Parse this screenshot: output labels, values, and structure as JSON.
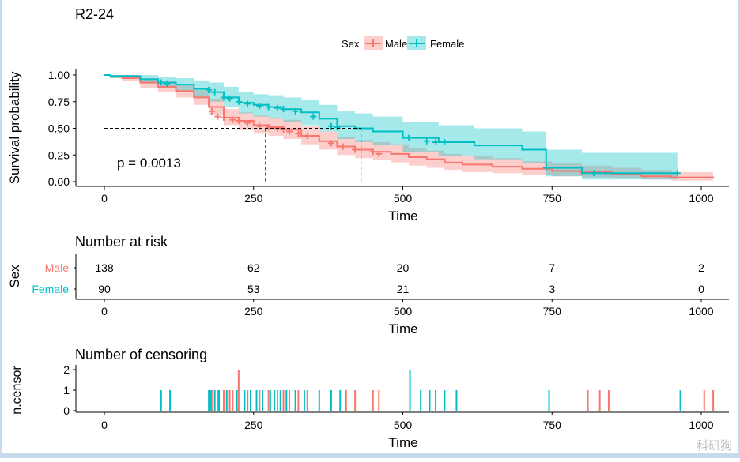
{
  "chart_data": [
    {
      "type": "line",
      "subtype": "kaplan-meier",
      "title": "R2-24",
      "xlabel": "Time",
      "ylabel": "Survival probability",
      "xlim": [
        -50,
        1040
      ],
      "ylim": [
        -0.03,
        1.03
      ],
      "xticks": [
        0,
        250,
        500,
        750,
        1000
      ],
      "yticks": [
        0.0,
        0.25,
        0.5,
        0.75,
        1.0
      ],
      "ytick_labels": [
        "0.00",
        "0.25",
        "0.50",
        "0.75",
        "1.00"
      ],
      "legend": {
        "title": "Sex",
        "position": "top",
        "entries": [
          "Male",
          "Female"
        ]
      },
      "annotation": "p = 0.0013",
      "median_lines": [
        {
          "series": "Male",
          "x": 270,
          "y": 0.5
        },
        {
          "series": "Female",
          "x": 430,
          "y": 0.5
        }
      ],
      "series": [
        {
          "name": "Male",
          "color": "#F8766D",
          "x": [
            0,
            10,
            30,
            60,
            90,
            120,
            150,
            175,
            200,
            225,
            250,
            275,
            300,
            330,
            360,
            390,
            420,
            450,
            480,
            510,
            540,
            570,
            600,
            650,
            700,
            750,
            800,
            850,
            900,
            950,
            1020
          ],
          "y": [
            1.0,
            0.99,
            0.97,
            0.93,
            0.89,
            0.85,
            0.79,
            0.7,
            0.6,
            0.57,
            0.53,
            0.51,
            0.49,
            0.43,
            0.38,
            0.33,
            0.3,
            0.28,
            0.26,
            0.23,
            0.21,
            0.18,
            0.16,
            0.14,
            0.12,
            0.1,
            0.09,
            0.07,
            0.05,
            0.04,
            0.03
          ],
          "lower": [
            1.0,
            0.97,
            0.94,
            0.88,
            0.84,
            0.79,
            0.72,
            0.63,
            0.53,
            0.49,
            0.45,
            0.43,
            0.4,
            0.35,
            0.3,
            0.25,
            0.22,
            0.2,
            0.18,
            0.15,
            0.13,
            0.11,
            0.09,
            0.08,
            0.06,
            0.05,
            0.04,
            0.03,
            0.02,
            0.01,
            0.01
          ],
          "upper": [
            1.0,
            1.0,
            1.0,
            0.97,
            0.94,
            0.91,
            0.86,
            0.78,
            0.68,
            0.65,
            0.62,
            0.6,
            0.58,
            0.52,
            0.47,
            0.42,
            0.39,
            0.37,
            0.35,
            0.31,
            0.29,
            0.26,
            0.24,
            0.22,
            0.19,
            0.17,
            0.15,
            0.13,
            0.11,
            0.09,
            0.08
          ],
          "censor_x": [
            180,
            190,
            200,
            215,
            225,
            240,
            260,
            275,
            290,
            300,
            310,
            325,
            340,
            380,
            400,
            420,
            450,
            460,
            800,
            840
          ],
          "censor_y": [
            0.66,
            0.61,
            0.6,
            0.58,
            0.57,
            0.55,
            0.52,
            0.51,
            0.5,
            0.49,
            0.47,
            0.45,
            0.43,
            0.36,
            0.33,
            0.3,
            0.28,
            0.26,
            0.09,
            0.08
          ]
        },
        {
          "name": "Female",
          "color": "#00BFC4",
          "x": [
            0,
            10,
            60,
            90,
            120,
            150,
            175,
            200,
            225,
            250,
            275,
            300,
            330,
            360,
            390,
            420,
            450,
            500,
            560,
            620,
            700,
            740,
            800,
            850,
            960
          ],
          "y": [
            1.0,
            0.99,
            0.96,
            0.93,
            0.91,
            0.87,
            0.84,
            0.79,
            0.74,
            0.72,
            0.7,
            0.68,
            0.65,
            0.59,
            0.52,
            0.5,
            0.47,
            0.41,
            0.37,
            0.34,
            0.3,
            0.13,
            0.08,
            0.08,
            0.08
          ],
          "lower": [
            1.0,
            0.97,
            0.92,
            0.88,
            0.84,
            0.79,
            0.75,
            0.7,
            0.64,
            0.61,
            0.59,
            0.56,
            0.53,
            0.47,
            0.4,
            0.37,
            0.34,
            0.28,
            0.24,
            0.21,
            0.17,
            0.05,
            0.02,
            0.02,
            0.02
          ],
          "upper": [
            1.0,
            1.0,
            1.0,
            0.98,
            0.97,
            0.95,
            0.93,
            0.89,
            0.84,
            0.82,
            0.81,
            0.79,
            0.77,
            0.72,
            0.66,
            0.64,
            0.61,
            0.56,
            0.53,
            0.5,
            0.47,
            0.3,
            0.27,
            0.27,
            0.27
          ],
          "censor_x": [
            95,
            105,
            175,
            185,
            200,
            210,
            225,
            240,
            260,
            275,
            290,
            300,
            320,
            350,
            380,
            390,
            510,
            540,
            555,
            570,
            740,
            820,
            960
          ],
          "censor_y": [
            0.93,
            0.92,
            0.86,
            0.84,
            0.79,
            0.78,
            0.75,
            0.73,
            0.71,
            0.7,
            0.69,
            0.68,
            0.66,
            0.61,
            0.52,
            0.51,
            0.41,
            0.38,
            0.37,
            0.37,
            0.13,
            0.08,
            0.08
          ]
        }
      ]
    },
    {
      "type": "table",
      "title": "Number at risk",
      "ylabel": "Sex",
      "xlabel": "Time",
      "xticks": [
        0,
        250,
        500,
        750,
        1000
      ],
      "rows": [
        {
          "name": "Male",
          "color": "#F8766D",
          "values": [
            138,
            62,
            20,
            7,
            2
          ]
        },
        {
          "name": "Female",
          "color": "#00BFC4",
          "values": [
            90,
            53,
            21,
            3,
            0
          ]
        }
      ]
    },
    {
      "type": "bar",
      "title": "Number of censoring",
      "ylabel": "n.censor",
      "xlabel": "Time",
      "xticks": [
        0,
        250,
        500,
        750,
        1000
      ],
      "yticks": [
        0,
        1,
        2
      ],
      "ylim": [
        0,
        2.2
      ],
      "series": [
        {
          "name": "Male",
          "color": "#F8766D",
          "x": [
            180,
            190,
            200,
            210,
            215,
            225,
            240,
            260,
            275,
            290,
            300,
            310,
            325,
            340,
            405,
            420,
            450,
            460,
            810,
            830,
            845,
            1005,
            1020
          ],
          "values": [
            1,
            1,
            1,
            1,
            1,
            2,
            1,
            1,
            1,
            1,
            1,
            1,
            1,
            1,
            1,
            1,
            1,
            1,
            1,
            1,
            1,
            1,
            1
          ]
        },
        {
          "name": "Female",
          "color": "#00BFC4",
          "x": [
            95,
            110,
            175,
            178,
            185,
            192,
            205,
            222,
            235,
            245,
            255,
            265,
            278,
            285,
            295,
            305,
            320,
            335,
            360,
            380,
            395,
            512,
            530,
            545,
            555,
            570,
            590,
            745,
            965
          ],
          "values": [
            1,
            1,
            1,
            1,
            1,
            1,
            1,
            1,
            1,
            1,
            1,
            1,
            1,
            1,
            1,
            1,
            1,
            1,
            1,
            1,
            1,
            2,
            1,
            1,
            1,
            1,
            1,
            1,
            1
          ]
        }
      ]
    }
  ],
  "watermark": "科研狗"
}
